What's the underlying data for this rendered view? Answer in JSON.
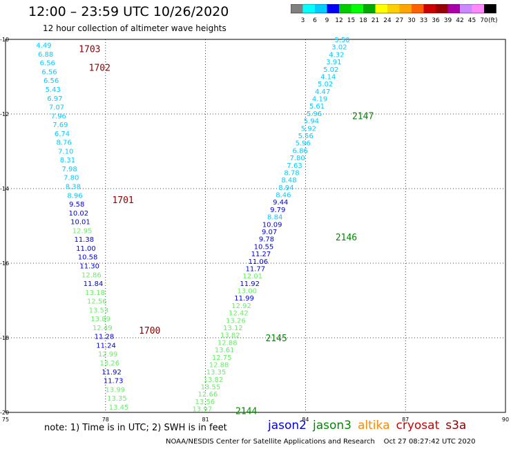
{
  "header": {
    "title": "12:00 – 23:59 UTC 10/26/2020",
    "subtitle": "12 hour collection of altimeter wave heights"
  },
  "legend": {
    "labels": [
      "3",
      "6",
      "9",
      "12",
      "15",
      "18",
      "21",
      "24",
      "27",
      "30",
      "33",
      "36",
      "39",
      "42",
      "45",
      "70"
    ],
    "unit": "(ft)",
    "colors": [
      "#808080",
      "#00ffff",
      "#00ccff",
      "#0000ff",
      "#00cc00",
      "#00ff00",
      "#00aa00",
      "#ffff00",
      "#ffd000",
      "#ffa500",
      "#ff6000",
      "#cc0000",
      "#990000",
      "#aa00aa",
      "#cc88ff",
      "#ff88ff",
      "#000000"
    ]
  },
  "axes": {
    "x_ticks": [
      "75",
      "78",
      "81",
      "84",
      "87",
      "90"
    ],
    "y_ticks": [
      "-10",
      "-12",
      "-14",
      "-16",
      "-18",
      "-20"
    ]
  },
  "footer": {
    "note": "note: 1) Time is in UTC; 2) SWH is in feet",
    "satellites": [
      {
        "name": "jason2",
        "color": "#0000dd"
      },
      {
        "name": "jason3",
        "color": "#008800"
      },
      {
        "name": "altika",
        "color": "#ff8800"
      },
      {
        "name": "cryosat",
        "color": "#cc0000"
      },
      {
        "name": "s3a",
        "color": "#880000"
      }
    ],
    "credit": "NOAA/NESDIS Center for Satellite Applications and Research    Oct 27 08:27:42 UTC 2020"
  },
  "chart_data": {
    "type": "scatter",
    "title": "12 hour collection of altimeter wave heights",
    "xlim": [
      75,
      90
    ],
    "ylim": [
      -20,
      -10
    ],
    "grid": true,
    "units": "ft",
    "time_labels": [
      {
        "label": "1703",
        "lon": 77.2,
        "lat": -10.25,
        "color": "#880000"
      },
      {
        "label": "1702",
        "lon": 77.5,
        "lat": -10.75,
        "color": "#880000"
      },
      {
        "label": "1701",
        "lon": 78.2,
        "lat": -14.3,
        "color": "#880000"
      },
      {
        "label": "1700",
        "lon": 79.0,
        "lat": -17.8,
        "color": "#880000"
      },
      {
        "label": "2147",
        "lon": 85.4,
        "lat": -12.05,
        "color": "#008800"
      },
      {
        "label": "2146",
        "lon": 84.9,
        "lat": -15.3,
        "color": "#008800"
      },
      {
        "label": "2145",
        "lon": 82.8,
        "lat": -18.0,
        "color": "#008800"
      },
      {
        "label": "2144",
        "lon": 81.9,
        "lat": -19.95,
        "color": "#008800"
      }
    ],
    "tracks": [
      {
        "satellite": "cryosat",
        "start": {
          "lon": 76.15,
          "lat": -10.15
        },
        "end": {
          "lon": 78.4,
          "lat": -19.85
        },
        "values": [
          {
            "swh": "4.49",
            "c": "#00ccff"
          },
          {
            "swh": "6.88",
            "c": "#00ccff"
          },
          {
            "swh": "6.56",
            "c": "#00ccff"
          },
          {
            "swh": "6.56",
            "c": "#00ccff"
          },
          {
            "swh": "6.56",
            "c": "#00ccff"
          },
          {
            "swh": "5.43",
            "c": "#00ccff"
          },
          {
            "swh": "6.97",
            "c": "#00ccff"
          },
          {
            "swh": "7.07",
            "c": "#00ccff"
          },
          {
            "swh": "7.96",
            "c": "#00ccff"
          },
          {
            "swh": "7.69",
            "c": "#00ccff"
          },
          {
            "swh": "6.74",
            "c": "#00ccff"
          },
          {
            "swh": "8.76",
            "c": "#00ccff"
          },
          {
            "swh": "7.10",
            "c": "#00ccff"
          },
          {
            "swh": "8.31",
            "c": "#00ccff"
          },
          {
            "swh": "7.98",
            "c": "#00ccff"
          },
          {
            "swh": "7.80",
            "c": "#00ccff"
          },
          {
            "swh": "8.38",
            "c": "#00ccff"
          },
          {
            "swh": "8.96",
            "c": "#00ccff"
          },
          {
            "swh": "9.58",
            "c": "#0000dd"
          },
          {
            "swh": "10.02",
            "c": "#0000dd"
          },
          {
            "swh": "10.01",
            "c": "#0000dd"
          },
          {
            "swh": "12.95",
            "c": "#66ee66"
          },
          {
            "swh": "11.38",
            "c": "#0000dd"
          },
          {
            "swh": "11.00",
            "c": "#0000dd"
          },
          {
            "swh": "10.58",
            "c": "#0000dd"
          },
          {
            "swh": "11.30",
            "c": "#0000dd"
          },
          {
            "swh": "12.86",
            "c": "#66ee66"
          },
          {
            "swh": "11.84",
            "c": "#0000dd"
          },
          {
            "swh": "13.18",
            "c": "#66ee66"
          },
          {
            "swh": "12.56",
            "c": "#66ee66"
          },
          {
            "swh": "13.53",
            "c": "#66ee66"
          },
          {
            "swh": "13.89",
            "c": "#66ee66"
          },
          {
            "swh": "12.49",
            "c": "#66ee66"
          },
          {
            "swh": "11.28",
            "c": "#0000dd"
          },
          {
            "swh": "11.24",
            "c": "#0000dd"
          },
          {
            "swh": "12.99",
            "c": "#66ee66"
          },
          {
            "swh": "13.26",
            "c": "#66ee66"
          },
          {
            "swh": "11.92",
            "c": "#0000dd"
          },
          {
            "swh": "11.73",
            "c": "#0000dd"
          },
          {
            "swh": "13.99",
            "c": "#66ee66"
          },
          {
            "swh": "13.35",
            "c": "#66ee66"
          },
          {
            "swh": "13.45",
            "c": "#66ee66"
          }
        ]
      },
      {
        "satellite": "jason3",
        "start": {
          "lon": 85.1,
          "lat": -10.0
        },
        "end": {
          "lon": 80.9,
          "lat": -19.9
        },
        "values": [
          {
            "swh": "5.50",
            "c": "#00ccff"
          },
          {
            "swh": "3.02",
            "c": "#00ccff"
          },
          {
            "swh": "4.32",
            "c": "#00ccff"
          },
          {
            "swh": "3.91",
            "c": "#00ccff"
          },
          {
            "swh": "5.02",
            "c": "#00ccff"
          },
          {
            "swh": "4.14",
            "c": "#00ccff"
          },
          {
            "swh": "5.02",
            "c": "#00ccff"
          },
          {
            "swh": "4.47",
            "c": "#00ccff"
          },
          {
            "swh": "4.19",
            "c": "#00ccff"
          },
          {
            "swh": "5.61",
            "c": "#00ccff"
          },
          {
            "swh": "5.96",
            "c": "#00ccff"
          },
          {
            "swh": "5.94",
            "c": "#00ccff"
          },
          {
            "swh": "5.92",
            "c": "#00ccff"
          },
          {
            "swh": "5.56",
            "c": "#00ccff"
          },
          {
            "swh": "5.96",
            "c": "#00ccff"
          },
          {
            "swh": "6.86",
            "c": "#00ccff"
          },
          {
            "swh": "7.80",
            "c": "#00ccff"
          },
          {
            "swh": "7.63",
            "c": "#00ccff"
          },
          {
            "swh": "8.78",
            "c": "#00ccff"
          },
          {
            "swh": "8.48",
            "c": "#00ccff"
          },
          {
            "swh": "8.94",
            "c": "#00ccff"
          },
          {
            "swh": "8.46",
            "c": "#00ccff"
          },
          {
            "swh": "9.44",
            "c": "#0000dd"
          },
          {
            "swh": "9.79",
            "c": "#0000dd"
          },
          {
            "swh": "8.84",
            "c": "#00ccff"
          },
          {
            "swh": "10.09",
            "c": "#0000dd"
          },
          {
            "swh": "9.07",
            "c": "#0000dd"
          },
          {
            "swh": "9.78",
            "c": "#0000dd"
          },
          {
            "swh": "10.55",
            "c": "#0000dd"
          },
          {
            "swh": "11.27",
            "c": "#0000dd"
          },
          {
            "swh": "11.06",
            "c": "#0000dd"
          },
          {
            "swh": "11.77",
            "c": "#0000dd"
          },
          {
            "swh": "12.01",
            "c": "#66ee66"
          },
          {
            "swh": "11.92",
            "c": "#0000dd"
          },
          {
            "swh": "13.00",
            "c": "#66ee66"
          },
          {
            "swh": "11.99",
            "c": "#0000dd"
          },
          {
            "swh": "12.92",
            "c": "#66ee66"
          },
          {
            "swh": "12.42",
            "c": "#66ee66"
          },
          {
            "swh": "13.26",
            "c": "#66ee66"
          },
          {
            "swh": "13.12",
            "c": "#66ee66"
          },
          {
            "swh": "13.82",
            "c": "#66ee66"
          },
          {
            "swh": "12.88",
            "c": "#66ee66"
          },
          {
            "swh": "13.61",
            "c": "#66ee66"
          },
          {
            "swh": "12.75",
            "c": "#66ee66"
          },
          {
            "swh": "12.88",
            "c": "#66ee66"
          },
          {
            "swh": "13.35",
            "c": "#66ee66"
          },
          {
            "swh": "13.82",
            "c": "#66ee66"
          },
          {
            "swh": "13.55",
            "c": "#66ee66"
          },
          {
            "swh": "12.66",
            "c": "#66ee66"
          },
          {
            "swh": "13.56",
            "c": "#66ee66"
          },
          {
            "swh": "13.97",
            "c": "#66ee66"
          }
        ]
      }
    ]
  }
}
